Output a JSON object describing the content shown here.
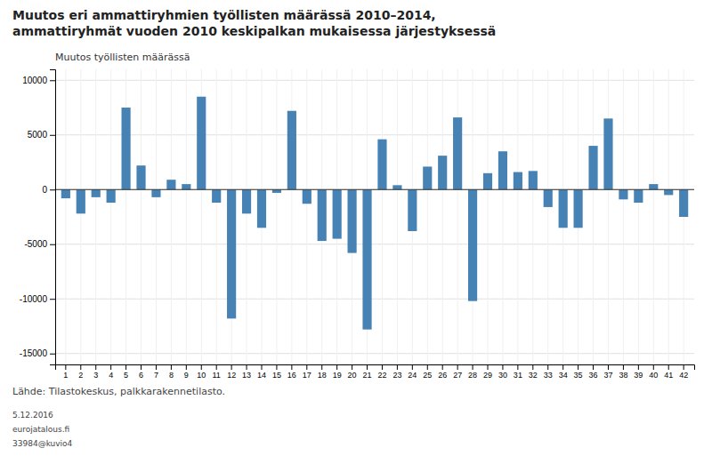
{
  "chart_data": {
    "type": "bar",
    "title": "Muutos eri ammattiryhmien työllisten määrässä 2010–2014,",
    "subtitle": "ammattiryhmät vuoden 2010 keskipalkan mukaisessa järjestyksessä",
    "ylabel": "Muutos työllisten määrässä",
    "annotations": [
      "Lähde:  Tilastokeskus, palkkarakennetilasto.",
      "5.12.2016",
      "eurojatalous.fi",
      "33984@kuvio4"
    ],
    "categories": [
      "1",
      "2",
      "3",
      "4",
      "5",
      "6",
      "7",
      "8",
      "9",
      "10",
      "11",
      "12",
      "13",
      "14",
      "15",
      "16",
      "17",
      "18",
      "19",
      "20",
      "21",
      "22",
      "23",
      "24",
      "25",
      "26",
      "27",
      "28",
      "29",
      "30",
      "31",
      "32",
      "33",
      "34",
      "35",
      "36",
      "37",
      "38",
      "39",
      "40",
      "41",
      "42"
    ],
    "values": [
      -800,
      -2200,
      -700,
      -1200,
      7500,
      2200,
      -700,
      900,
      500,
      8500,
      -1200,
      -11800,
      -2200,
      -3500,
      -300,
      7200,
      -1300,
      -4700,
      -4500,
      -5800,
      -12800,
      4600,
      400,
      -3800,
      2100,
      3100,
      6600,
      -10200,
      1500,
      3500,
      1600,
      1700,
      -1600,
      -3500,
      -3500,
      4000,
      6500,
      -900,
      -1200,
      500,
      -500,
      -2500
    ],
    "color": "#4682b4",
    "ylim": [
      -16000,
      11000
    ],
    "yticks": [
      -15000,
      -10000,
      -5000,
      0,
      5000,
      10000
    ],
    "grid": true
  }
}
